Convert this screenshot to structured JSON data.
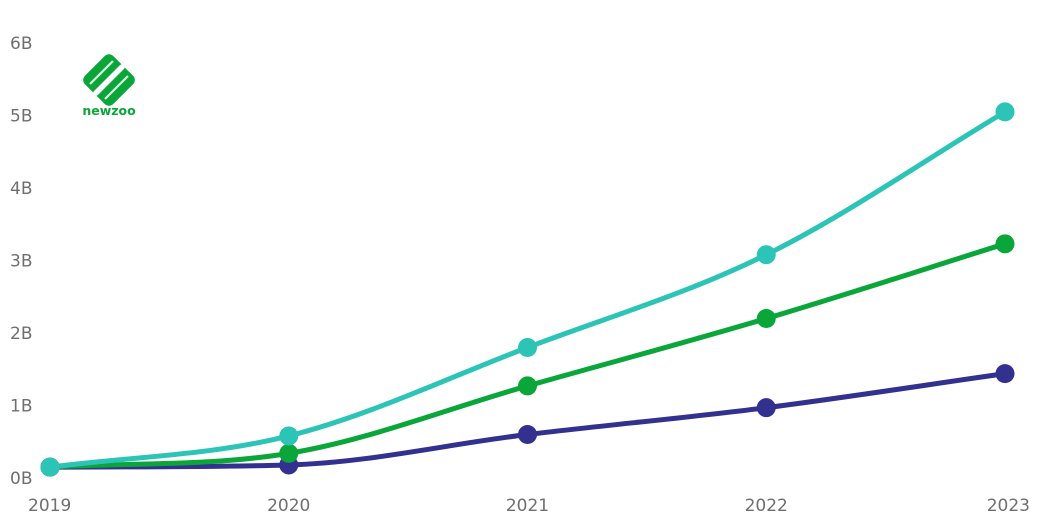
{
  "brand": {
    "name": "newzoo",
    "color": "#0aa63a",
    "dark_color": "#076b25"
  },
  "chart_data": {
    "type": "line",
    "title": "",
    "xlabel": "",
    "ylabel": "",
    "x": [
      "2019",
      "2020",
      "2021",
      "2022",
      "2023"
    ],
    "ylim": [
      0,
      6
    ],
    "y_ticks": [
      {
        "value": 0,
        "label": "0B"
      },
      {
        "value": 1,
        "label": "1B"
      },
      {
        "value": 2,
        "label": "2B"
      },
      {
        "value": 3,
        "label": "3B"
      },
      {
        "value": 4,
        "label": "4B"
      },
      {
        "value": 5,
        "label": "5B"
      },
      {
        "value": 6,
        "label": "6B"
      }
    ],
    "grid": false,
    "legend": "none",
    "series": [
      {
        "color": "#2dc4b8",
        "values": [
          0.15,
          0.58,
          1.8,
          3.08,
          5.05
        ]
      },
      {
        "color": "#0aa63a",
        "values": [
          0.15,
          0.34,
          1.27,
          2.2,
          3.23
        ]
      },
      {
        "color": "#32318f",
        "values": [
          0.15,
          0.18,
          0.6,
          0.97,
          1.44
        ]
      }
    ]
  }
}
